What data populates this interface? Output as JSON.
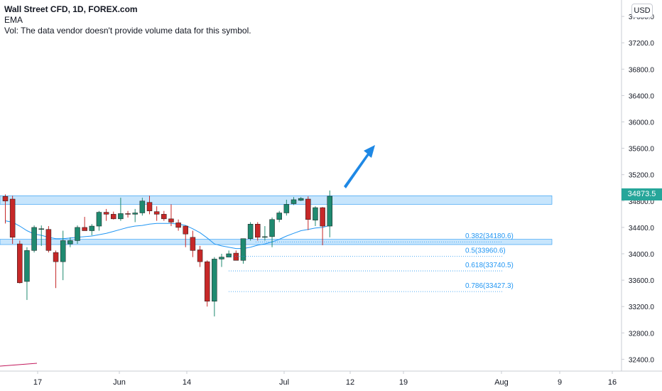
{
  "legend": {
    "symbol": "Wall Street CFD, 1D, FOREX.com",
    "ema": "EMA",
    "vol": "Vol: The data vendor doesn't provide volume data for this symbol."
  },
  "currency": "USD",
  "last_price": "34873.5",
  "price_ticks": [
    "37600.0",
    "37200.0",
    "36800.0",
    "36400.0",
    "36000.0",
    "35600.0",
    "35200.0",
    "34800.0",
    "34400.0",
    "34000.0",
    "33600.0",
    "33200.0",
    "32800.0",
    "32400.0"
  ],
  "date_ticks": [
    "17",
    "Jun",
    "14",
    "Jul",
    "12",
    "19",
    "Aug",
    "9",
    "16"
  ],
  "fib_levels": [
    "0.382(34180.6)",
    "0.5(33960.6)",
    "0.618(33740.5)",
    "0.786(33427.3)"
  ],
  "colors": {
    "up": "#1f8a70",
    "down": "#c62828",
    "ema": "#2196f3",
    "zone": "rgba(33,150,243,0.25)",
    "zone_border": "#2196f3",
    "arrow": "#1e88e5",
    "fib": "#2196f3"
  },
  "chart_data": {
    "type": "candlestick",
    "title": "Wall Street CFD, 1D, FOREX.com",
    "ylim": [
      32200,
      37900
    ],
    "candles": [
      {
        "o": 34870,
        "h": 34900,
        "l": 34460,
        "c": 34800
      },
      {
        "o": 34830,
        "h": 34880,
        "l": 34150,
        "c": 34250
      },
      {
        "o": 34150,
        "h": 34200,
        "l": 33550,
        "c": 33560
      },
      {
        "o": 33580,
        "h": 34100,
        "l": 33300,
        "c": 34050
      },
      {
        "o": 34050,
        "h": 34430,
        "l": 34020,
        "c": 34400
      },
      {
        "o": 34380,
        "h": 34430,
        "l": 34120,
        "c": 34380
      },
      {
        "o": 34370,
        "h": 34420,
        "l": 34020,
        "c": 34050
      },
      {
        "o": 34020,
        "h": 34050,
        "l": 33480,
        "c": 33880
      },
      {
        "o": 33880,
        "h": 34350,
        "l": 33600,
        "c": 34200
      },
      {
        "o": 34150,
        "h": 34250,
        "l": 34100,
        "c": 34200
      },
      {
        "o": 34200,
        "h": 34430,
        "l": 34150,
        "c": 34400
      },
      {
        "o": 34400,
        "h": 34560,
        "l": 34350,
        "c": 34350
      },
      {
        "o": 34350,
        "h": 34450,
        "l": 34280,
        "c": 34420
      },
      {
        "o": 34420,
        "h": 34650,
        "l": 34350,
        "c": 34630
      },
      {
        "o": 34630,
        "h": 34680,
        "l": 34500,
        "c": 34600
      },
      {
        "o": 34600,
        "h": 34640,
        "l": 34520,
        "c": 34530
      },
      {
        "o": 34530,
        "h": 34850,
        "l": 34500,
        "c": 34610
      },
      {
        "o": 34610,
        "h": 34650,
        "l": 34550,
        "c": 34600
      },
      {
        "o": 34600,
        "h": 34680,
        "l": 34480,
        "c": 34620
      },
      {
        "o": 34620,
        "h": 34850,
        "l": 34580,
        "c": 34800
      },
      {
        "o": 34780,
        "h": 34880,
        "l": 34600,
        "c": 34650
      },
      {
        "o": 34640,
        "h": 34720,
        "l": 34500,
        "c": 34600
      },
      {
        "o": 34600,
        "h": 34650,
        "l": 34500,
        "c": 34530
      },
      {
        "o": 34530,
        "h": 34750,
        "l": 34420,
        "c": 34480
      },
      {
        "o": 34470,
        "h": 34520,
        "l": 34350,
        "c": 34400
      },
      {
        "o": 34420,
        "h": 34430,
        "l": 34100,
        "c": 34300
      },
      {
        "o": 34250,
        "h": 34350,
        "l": 33950,
        "c": 34050
      },
      {
        "o": 34060,
        "h": 34120,
        "l": 33800,
        "c": 33880
      },
      {
        "o": 33880,
        "h": 33900,
        "l": 33200,
        "c": 33280
      },
      {
        "o": 33280,
        "h": 33950,
        "l": 33050,
        "c": 33920
      },
      {
        "o": 33920,
        "h": 34000,
        "l": 33800,
        "c": 33950
      },
      {
        "o": 33950,
        "h": 34050,
        "l": 33950,
        "c": 34000
      },
      {
        "o": 34010,
        "h": 34050,
        "l": 33900,
        "c": 33900
      },
      {
        "o": 33900,
        "h": 34230,
        "l": 33850,
        "c": 34230
      },
      {
        "o": 34230,
        "h": 34480,
        "l": 34200,
        "c": 34450
      },
      {
        "o": 34450,
        "h": 34480,
        "l": 34200,
        "c": 34250
      },
      {
        "o": 34260,
        "h": 34420,
        "l": 34200,
        "c": 34260
      },
      {
        "o": 34260,
        "h": 34550,
        "l": 34100,
        "c": 34520
      },
      {
        "o": 34520,
        "h": 34650,
        "l": 34480,
        "c": 34620
      },
      {
        "o": 34620,
        "h": 34820,
        "l": 34580,
        "c": 34750
      },
      {
        "o": 34760,
        "h": 34860,
        "l": 34740,
        "c": 34820
      },
      {
        "o": 34810,
        "h": 34860,
        "l": 34800,
        "c": 34840
      },
      {
        "o": 34830,
        "h": 34870,
        "l": 34360,
        "c": 34520
      },
      {
        "o": 34510,
        "h": 34720,
        "l": 34420,
        "c": 34700
      },
      {
        "o": 34700,
        "h": 34710,
        "l": 34130,
        "c": 34420
      },
      {
        "o": 34420,
        "h": 34960,
        "l": 34250,
        "c": 34873.5
      }
    ],
    "ema": [
      34500,
      34480,
      34420,
      34350,
      34300,
      34280,
      34250,
      34230,
      34230,
      34240,
      34250,
      34260,
      34270,
      34290,
      34310,
      34340,
      34370,
      34400,
      34420,
      34430,
      34450,
      34460,
      34460,
      34460,
      34450,
      34430,
      34380,
      34320,
      34240,
      34150,
      34120,
      34100,
      34080,
      34080,
      34100,
      34130,
      34150,
      34180,
      34220,
      34270,
      34310,
      34350,
      34370,
      34390,
      34400,
      34430
    ],
    "resistance_zone": [
      34750,
      34880
    ],
    "support_zone": [
      34140,
      34220
    ],
    "fibonacci": [
      {
        "label": "0.382",
        "value": 34180.6
      },
      {
        "label": "0.5",
        "value": 33960.6
      },
      {
        "label": "0.618",
        "value": 33740.5
      },
      {
        "label": "0.786",
        "value": 33427.3
      }
    ]
  }
}
